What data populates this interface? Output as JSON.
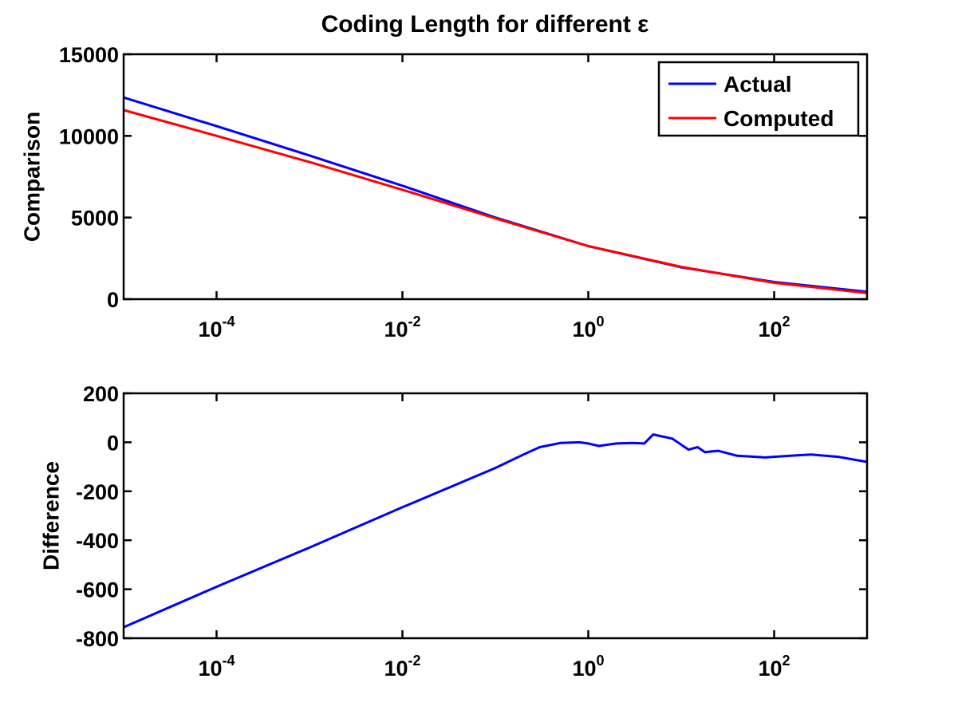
{
  "title": "Coding Length for different ε",
  "chart_data": [
    {
      "type": "line",
      "ylabel": "Comparison",
      "xscale": "log",
      "xlim": [
        1e-05,
        1000
      ],
      "ylim": [
        0,
        15000
      ],
      "x_ticks": [
        {
          "value": 0.0001,
          "base": "10",
          "exp": "-4"
        },
        {
          "value": 0.01,
          "base": "10",
          "exp": "-2"
        },
        {
          "value": 1,
          "base": "10",
          "exp": "0"
        },
        {
          "value": 100,
          "base": "10",
          "exp": "2"
        }
      ],
      "y_ticks": [
        0,
        5000,
        10000,
        15000
      ],
      "legend": {
        "position": "top-right",
        "entries": [
          "Actual",
          "Computed"
        ]
      },
      "grid": false,
      "series": [
        {
          "name": "Actual",
          "color": "#0000ff",
          "x": [
            1e-05,
            0.0001,
            0.001,
            0.01,
            0.1,
            1,
            10,
            100,
            1000
          ],
          "y": [
            12350,
            10600,
            8800,
            6950,
            5000,
            3250,
            1950,
            1050,
            450
          ]
        },
        {
          "name": "Computed",
          "color": "#ff0000",
          "x": [
            1e-05,
            0.0001,
            0.001,
            0.01,
            0.1,
            1,
            10,
            100,
            1000
          ],
          "y": [
            11580,
            10000,
            8400,
            6700,
            4950,
            3250,
            1980,
            1000,
            370
          ]
        }
      ]
    },
    {
      "type": "line",
      "ylabel": "Difference",
      "xscale": "log",
      "xlim": [
        1e-05,
        1000
      ],
      "ylim": [
        -800,
        200
      ],
      "x_ticks": [
        {
          "value": 0.0001,
          "base": "10",
          "exp": "-4"
        },
        {
          "value": 0.01,
          "base": "10",
          "exp": "-2"
        },
        {
          "value": 1,
          "base": "10",
          "exp": "0"
        },
        {
          "value": 100,
          "base": "10",
          "exp": "2"
        }
      ],
      "y_ticks": [
        -800,
        -600,
        -400,
        -200,
        0,
        200
      ],
      "grid": false,
      "series": [
        {
          "color": "#0000ff",
          "x": [
            1e-05,
            0.0001,
            0.001,
            0.01,
            0.1,
            0.2,
            0.3,
            0.5,
            0.8,
            1,
            1.3,
            2,
            3,
            4,
            5,
            8,
            12,
            15,
            18,
            25,
            40,
            80,
            150,
            250,
            500,
            1000
          ],
          "y": [
            -755,
            -590,
            -430,
            -265,
            -105,
            -50,
            -20,
            -3,
            0,
            -5,
            -15,
            -5,
            -3,
            -5,
            32,
            15,
            -30,
            -20,
            -40,
            -35,
            -55,
            -62,
            -55,
            -50,
            -60,
            -80
          ]
        }
      ]
    }
  ]
}
